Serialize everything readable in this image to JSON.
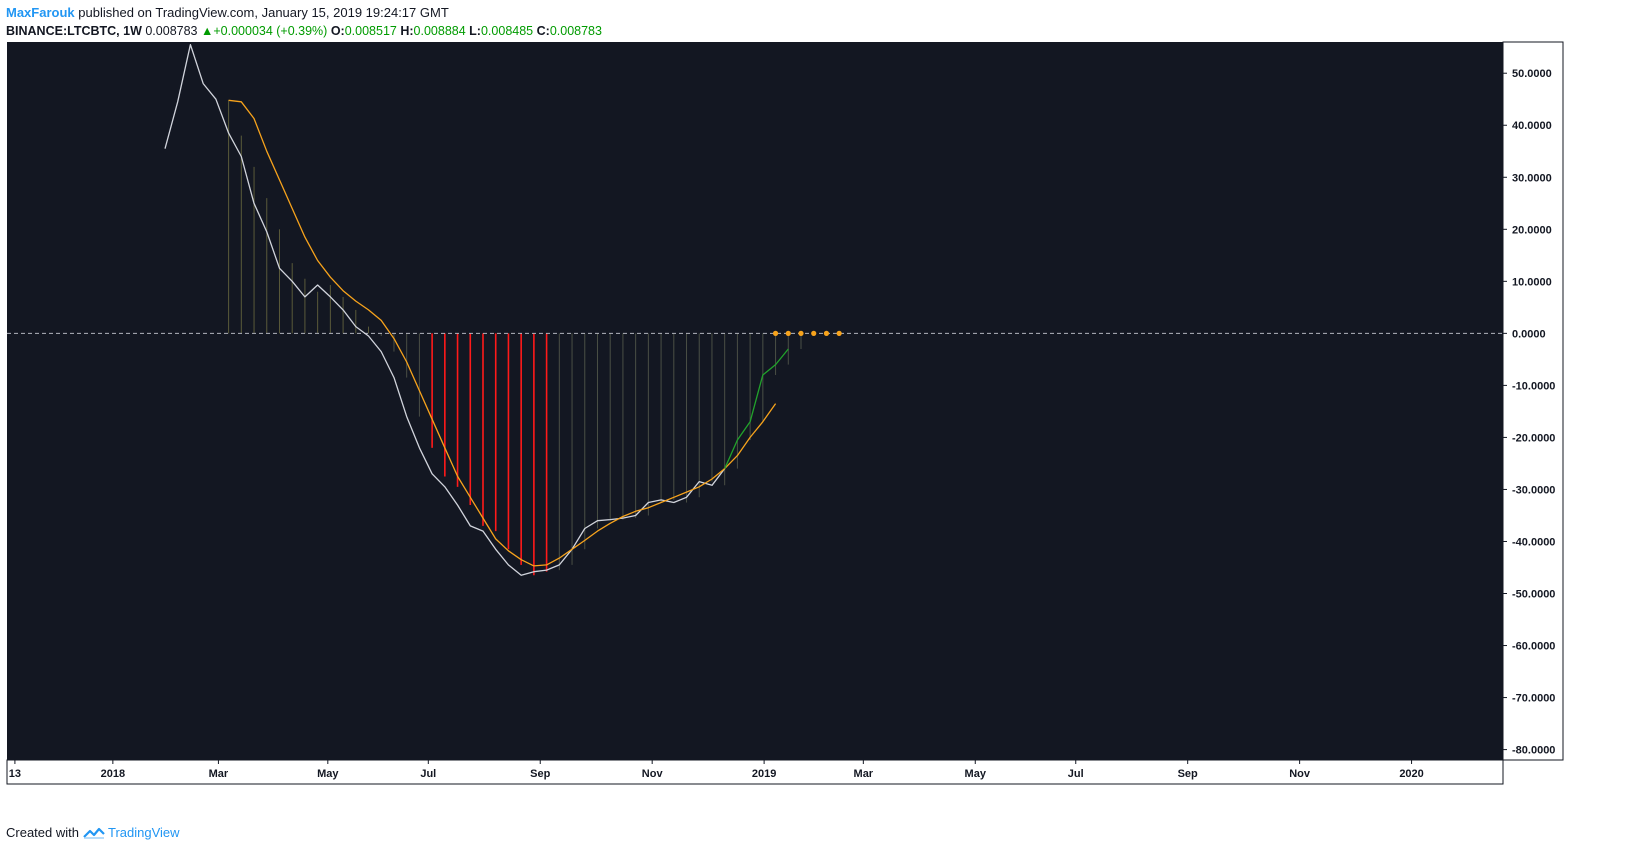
{
  "header": {
    "author": "MaxFarouk",
    "published_text": "published on TradingView.com, January 15, 2019 19:24:17 GMT",
    "symbol": "BINANCE:LTCBTC, 1W",
    "price": "0.008783",
    "change": "+0.000034 (+0.39%)",
    "open_label": "O:",
    "open": "0.008517",
    "high_label": "H:",
    "high": "0.008884",
    "low_label": "L:",
    "low": "0.008485",
    "close_label": "C:",
    "close": "0.008783"
  },
  "footer": {
    "created_with": "Created with",
    "brand": "TradingView"
  },
  "colors": {
    "background": "#131722",
    "fast_line": "#d1d4dc",
    "signal_line": "#f7a31c",
    "histogram_positive_weak": "#5a5a3a",
    "histogram_negative_strong": "#ff1a1a",
    "histogram_negative_weak": "#4a4f45",
    "recovery_line": "#21a32b",
    "markers": "#f7a31c",
    "axis_text": "#131722",
    "zero_line": "#b2b5be"
  },
  "chart_data": {
    "type": "line",
    "ylim": [
      -82,
      56
    ],
    "y_ticks": [
      "50.0000",
      "40.0000",
      "30.0000",
      "20.0000",
      "10.0000",
      "0.0000",
      "-10.0000",
      "-20.0000",
      "-30.0000",
      "-40.0000",
      "-50.0000",
      "-60.0000",
      "-70.0000",
      "-80.0000"
    ],
    "y_tick_values": [
      50,
      40,
      30,
      20,
      10,
      0,
      -10,
      -20,
      -30,
      -40,
      -50,
      -60,
      -70,
      -80
    ],
    "x_range_weeks": [
      -4,
      112
    ],
    "x_ticks": [
      {
        "label": "13",
        "week": -3.8
      },
      {
        "label": "2018",
        "week": 3.9
      },
      {
        "label": "Mar",
        "week": 12.2
      },
      {
        "label": "May",
        "week": 20.8
      },
      {
        "label": "Jul",
        "week": 28.7
      },
      {
        "label": "Sep",
        "week": 37.5
      },
      {
        "label": "Nov",
        "week": 46.3
      },
      {
        "label": "2019",
        "week": 55.1
      },
      {
        "label": "Mar",
        "week": 62.9
      },
      {
        "label": "May",
        "week": 71.7
      },
      {
        "label": "Jul",
        "week": 79.6
      },
      {
        "label": "Sep",
        "week": 88.4
      },
      {
        "label": "Nov",
        "week": 97.2
      },
      {
        "label": "2020",
        "week": 106.0
      }
    ],
    "series": [
      {
        "key": "fast",
        "start_week": 8,
        "values": [
          35.5,
          44.5,
          55.5,
          48,
          45,
          38.5,
          34,
          25,
          19.5,
          12.5,
          10,
          7,
          9.3,
          7,
          4.5,
          1.3,
          -0.5,
          -3.5,
          -8.5,
          -16,
          -22,
          -27,
          -29.5,
          -33,
          -37,
          -38,
          -41.5,
          -44.5,
          -46.5,
          -45.8,
          -45.5,
          -44.5,
          -41.5,
          -37.5,
          -36,
          -35.8,
          -35.5,
          -35,
          -32.5,
          -32,
          -32.5,
          -31.5,
          -28.5,
          -29.2,
          -26
        ]
      },
      {
        "key": "signal",
        "start_week": 13,
        "values": [
          44.8,
          44.5,
          41.3,
          35,
          29.5,
          24,
          18.5,
          14,
          10.8,
          8.2,
          6.2,
          4.5,
          2.5,
          -1,
          -5.5,
          -11,
          -16.5,
          -22,
          -27.5,
          -31.5,
          -35.5,
          -39.5,
          -41.8,
          -43.5,
          -44.7,
          -44.5,
          -43.2,
          -41.5,
          -39.8,
          -38,
          -36.5,
          -35.2,
          -34.2,
          -33.5,
          -32.5,
          -31.5,
          -30.5,
          -29.5,
          -28,
          -26,
          -23.5,
          -20,
          -17,
          -13.5
        ]
      },
      {
        "key": "recovery",
        "start_week": 52,
        "values": [
          -26,
          -20.5,
          -17,
          -8,
          -6,
          -3
        ]
      }
    ],
    "histogram": {
      "start_week": 13,
      "values": [
        44.8,
        38,
        32,
        26,
        20,
        13.5,
        10.5,
        8,
        9.3,
        7,
        4.5,
        1.3,
        -0.5,
        -3.5,
        -8.5,
        -16,
        -22,
        -27.5,
        -29.5,
        -33,
        -37,
        -38,
        -41.5,
        -44.5,
        -46.5,
        -45.8,
        -45.5,
        -44.5,
        -41.5,
        -37.5,
        -36,
        -35.8,
        -35.5,
        -35,
        -32.5,
        -32,
        -32.5,
        -31.5,
        -28.5,
        -29.2,
        -26,
        -20.5,
        -17,
        -8,
        -6,
        -3
      ],
      "strong_negative_range": [
        29,
        38
      ]
    },
    "markers": {
      "weeks": [
        56,
        57,
        58,
        59,
        60,
        61
      ],
      "value": 0
    }
  }
}
